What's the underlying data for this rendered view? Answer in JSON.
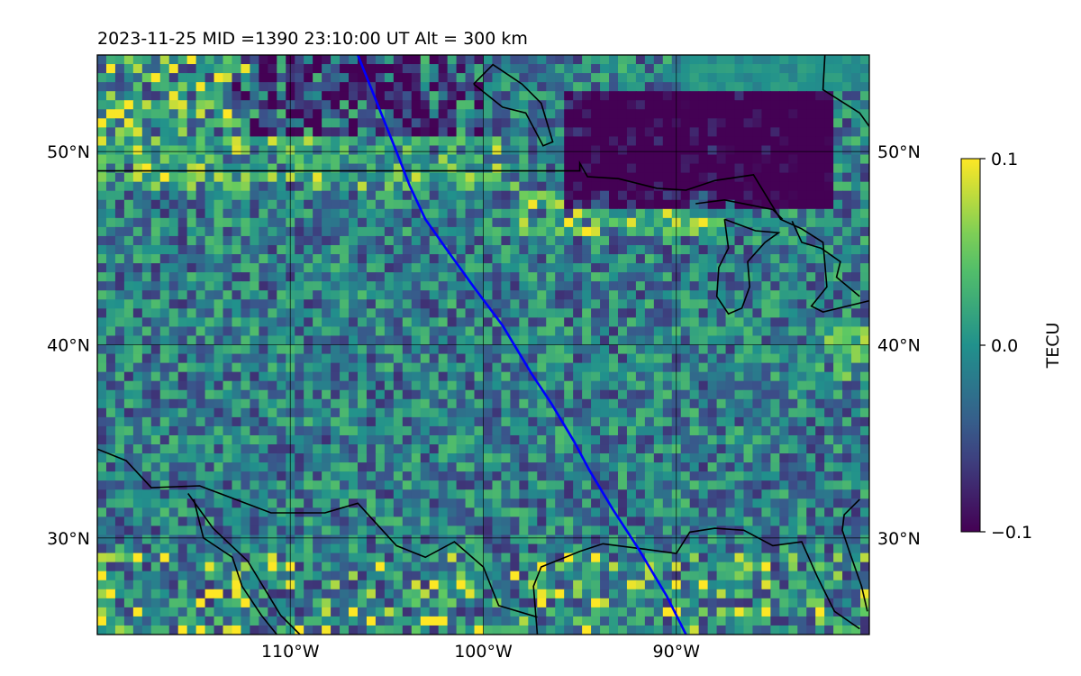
{
  "map": {
    "title": "2023-11-25  MID =1390    23:10:00  UT  Alt = 300 km",
    "lon_range": [
      -120,
      -80
    ],
    "lat_range": [
      25,
      55
    ],
    "lon_ticks": [
      {
        "value": -110,
        "label": "110°W"
      },
      {
        "value": -100,
        "label": "100°W"
      },
      {
        "value": -90,
        "label": "90°W"
      }
    ],
    "lat_ticks": [
      {
        "value": 30,
        "label": "30°N"
      },
      {
        "value": 40,
        "label": "40°N"
      },
      {
        "value": 50,
        "label": "50°N"
      }
    ],
    "grid": true,
    "colormap": "viridis",
    "colors": {
      "viridis": [
        "#440154",
        "#3b528b",
        "#21918c",
        "#5ec962",
        "#fde725"
      ],
      "track": "#0000ff",
      "coastline": "#000000"
    },
    "track": {
      "name": "satellite-track",
      "points": [
        [
          -106.5,
          55
        ],
        [
          -105.5,
          52.5
        ],
        [
          -104.5,
          50
        ],
        [
          -103.8,
          48.2
        ],
        [
          -103,
          46.5
        ],
        [
          -101.8,
          44.8
        ],
        [
          -100.5,
          43
        ],
        [
          -99,
          41
        ],
        [
          -97.5,
          38.5
        ],
        [
          -96.5,
          37
        ],
        [
          -95.3,
          35
        ],
        [
          -94.5,
          33.5
        ],
        [
          -93.3,
          31.5
        ],
        [
          -92,
          29.5
        ],
        [
          -90.5,
          27
        ],
        [
          -89.5,
          25
        ]
      ]
    }
  },
  "colorbar": {
    "label": "TECU",
    "min": -0.1,
    "max": 0.1,
    "ticks": [
      {
        "value": 0.1,
        "label": "0.1"
      },
      {
        "value": 0.0,
        "label": "0.0"
      },
      {
        "value": -0.1,
        "label": "−0.1"
      }
    ]
  }
}
